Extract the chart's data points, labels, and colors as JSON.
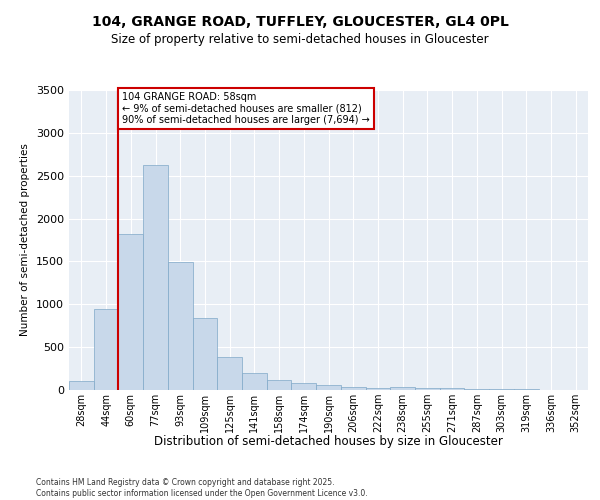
{
  "title": "104, GRANGE ROAD, TUFFLEY, GLOUCESTER, GL4 0PL",
  "subtitle": "Size of property relative to semi-detached houses in Gloucester",
  "xlabel": "Distribution of semi-detached houses by size in Gloucester",
  "ylabel": "Number of semi-detached properties",
  "footnote1": "Contains HM Land Registry data © Crown copyright and database right 2025.",
  "footnote2": "Contains public sector information licensed under the Open Government Licence v3.0.",
  "annotation_title": "104 GRANGE ROAD: 58sqm",
  "annotation_line1": "← 9% of semi-detached houses are smaller (812)",
  "annotation_line2": "90% of semi-detached houses are larger (7,694) →",
  "bar_color": "#c8d8ea",
  "bar_edge_color": "#7fa8c8",
  "vline_color": "#cc0000",
  "bg_color": "#e8eef5",
  "categories": [
    "28sqm",
    "44sqm",
    "60sqm",
    "77sqm",
    "93sqm",
    "109sqm",
    "125sqm",
    "141sqm",
    "158sqm",
    "174sqm",
    "190sqm",
    "206sqm",
    "222sqm",
    "238sqm",
    "255sqm",
    "271sqm",
    "287sqm",
    "303sqm",
    "319sqm",
    "336sqm",
    "352sqm"
  ],
  "values": [
    100,
    950,
    1820,
    2620,
    1490,
    840,
    380,
    200,
    120,
    80,
    55,
    35,
    25,
    40,
    20,
    25,
    15,
    10,
    10,
    5,
    5
  ],
  "ylim": [
    0,
    3500
  ],
  "yticks": [
    0,
    500,
    1000,
    1500,
    2000,
    2500,
    3000,
    3500
  ],
  "vline_pos": 1.5
}
